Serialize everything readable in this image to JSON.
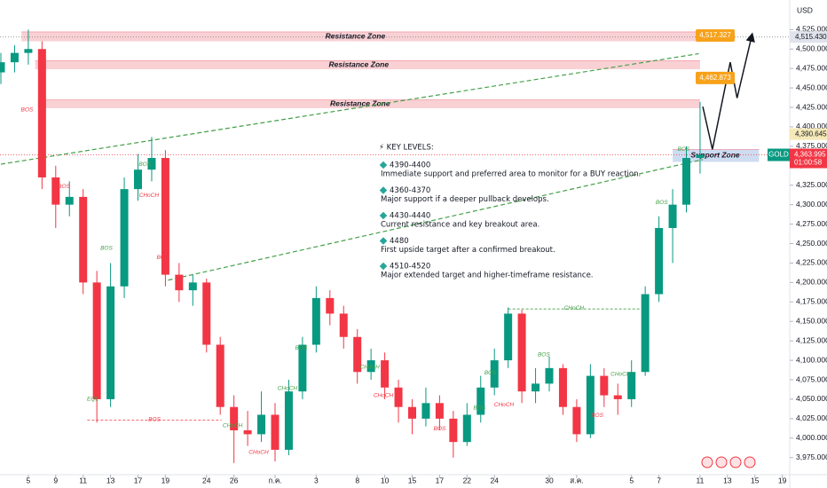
{
  "chart_data": {
    "type": "candlestick",
    "currency": "USD",
    "symbol": "GOLD",
    "countdown": "01:00:58",
    "up_color": "#089981",
    "down_color": "#f23645",
    "ylim": [
      3953,
      4563
    ],
    "yticks": [
      {
        "value": 3975,
        "label": "3,975.000"
      },
      {
        "value": 4000,
        "label": "4,000.000"
      },
      {
        "value": 4025,
        "label": "4,025.000"
      },
      {
        "value": 4050,
        "label": "4,050.000"
      },
      {
        "value": 4075,
        "label": "4,075.000"
      },
      {
        "value": 4100,
        "label": "4,100.000"
      },
      {
        "value": 4125,
        "label": "4,125.000"
      },
      {
        "value": 4150,
        "label": "4,150.000"
      },
      {
        "value": 4175,
        "label": "4,175.000"
      },
      {
        "value": 4200,
        "label": "4,200.000"
      },
      {
        "value": 4225,
        "label": "4,225.000"
      },
      {
        "value": 4250,
        "label": "4,250.000"
      },
      {
        "value": 4275,
        "label": "4,275.000"
      },
      {
        "value": 4300,
        "label": "4,300.000"
      },
      {
        "value": 4325,
        "label": "4,325.000"
      },
      {
        "value": 4350,
        "label": "4,350.000"
      },
      {
        "value": 4375,
        "label": "4,375.000"
      },
      {
        "value": 4400,
        "label": "4,400.000"
      },
      {
        "value": 4425,
        "label": "4,425.000"
      },
      {
        "value": 4450,
        "label": "4,450.000"
      },
      {
        "value": 4475,
        "label": "4,475.000"
      },
      {
        "value": 4500,
        "label": "4,500.000"
      },
      {
        "value": 4525,
        "label": "4,525.000"
      }
    ],
    "categories": [
      null,
      null,
      "5",
      null,
      "9",
      null,
      "11",
      null,
      "13",
      null,
      "17",
      null,
      "19",
      null,
      null,
      "24",
      null,
      "26",
      null,
      null,
      "ก.ค.",
      null,
      null,
      "3",
      null,
      null,
      "8",
      null,
      "10",
      null,
      "15",
      null,
      "17",
      null,
      "22",
      null,
      "24",
      null,
      null,
      null,
      "30",
      null,
      "ส.ค.",
      null,
      null,
      null,
      "5",
      null,
      "7",
      null,
      null,
      "11",
      null,
      "13",
      null,
      "15",
      null,
      "19"
    ],
    "open": [
      4470,
      4483,
      4495,
      4500,
      4335,
      4300,
      4310,
      4200,
      4050,
      4195,
      4320,
      4345,
      4360,
      4210,
      4190,
      4200,
      4120,
      4040,
      4010,
      4005,
      4030,
      3985,
      4060,
      4120,
      4180,
      4160,
      4130,
      4085,
      4100,
      4065,
      4040,
      4025,
      4045,
      4025,
      3995,
      4030,
      4065,
      4100,
      4160,
      4060,
      4070,
      4090,
      4040,
      4005,
      4080,
      4055,
      4050,
      4085,
      4185,
      4270,
      4300,
      4360,
      null,
      null,
      null,
      null,
      null,
      null
    ],
    "high": [
      4495,
      4505,
      4525,
      4510,
      4350,
      4330,
      4320,
      4215,
      4225,
      4335,
      4365,
      4387,
      4370,
      4225,
      4210,
      4205,
      4130,
      4055,
      4035,
      4060,
      4045,
      4075,
      4130,
      4195,
      4190,
      4170,
      4140,
      4115,
      4110,
      4075,
      4050,
      4065,
      4055,
      4035,
      4045,
      4080,
      4115,
      4168,
      4165,
      4090,
      4105,
      4095,
      4050,
      4095,
      4090,
      4070,
      4100,
      4195,
      4285,
      4320,
      4375,
      4432,
      null,
      null,
      null,
      null,
      null,
      null
    ],
    "low": [
      4455,
      4470,
      4480,
      4320,
      4270,
      4285,
      4185,
      4020,
      4040,
      4180,
      4305,
      4330,
      4195,
      4175,
      4170,
      4110,
      4030,
      3968,
      3990,
      3995,
      3970,
      3978,
      4050,
      4110,
      4145,
      4115,
      4070,
      4075,
      4050,
      4020,
      4005,
      4015,
      4010,
      3975,
      3990,
      4020,
      4055,
      4090,
      4045,
      4045,
      4060,
      4030,
      3995,
      4000,
      4040,
      4030,
      4040,
      4080,
      4175,
      4225,
      4290,
      4340,
      null,
      null,
      null,
      null,
      null,
      null
    ],
    "close": [
      4483,
      4495,
      4500,
      4335,
      4300,
      4310,
      4200,
      4050,
      4195,
      4320,
      4345,
      4360,
      4210,
      4190,
      4200,
      4120,
      4040,
      4010,
      4005,
      4030,
      3985,
      4060,
      4120,
      4180,
      4160,
      4130,
      4085,
      4100,
      4065,
      4040,
      4025,
      4045,
      4025,
      3995,
      4030,
      4065,
      4100,
      4160,
      4060,
      4070,
      4090,
      4040,
      4005,
      4080,
      4055,
      4050,
      4085,
      4185,
      4270,
      4300,
      4360,
      4364,
      null,
      null,
      null,
      null,
      null,
      null
    ],
    "zones": [
      {
        "label": "Resistance Zone",
        "lo": 4510,
        "hi": 4522,
        "x": [
          1.5,
          51.5
        ],
        "color": "#f8c9cd"
      },
      {
        "label": "Resistance Zone",
        "lo": 4474,
        "hi": 4485,
        "x": [
          2.5,
          51
        ],
        "color": "#f8c9cd"
      },
      {
        "label": "Resistance Zone",
        "lo": 4424,
        "hi": 4435,
        "x": [
          2.7,
          51
        ],
        "color": "#f8c9cd"
      },
      {
        "label": "Support Zone",
        "lo": 4355,
        "hi": 4371,
        "x": [
          49,
          55.3
        ],
        "color": "#c5d6f0"
      }
    ],
    "trendlines": [
      {
        "x": [
          0,
          50.9
        ],
        "y": [
          4352,
          4494
        ],
        "color": "#43a047"
      },
      {
        "x": [
          12.2,
          51.2
        ],
        "y": [
          4203,
          4358
        ],
        "color": "#43a047"
      }
    ],
    "projection": {
      "x": [
        51.2,
        51.9,
        53.2,
        53.7,
        54.8
      ],
      "y": [
        4426,
        4371,
        4483,
        4437,
        4519
      ],
      "color": "#131722"
    },
    "levels": [
      {
        "label": "BOS",
        "y": 4023,
        "x": [
          6.3,
          16.1
        ],
        "color": "#f23645"
      },
      {
        "label": "CHoCH",
        "y": 4166,
        "x": [
          37,
          46.6
        ],
        "color": "#43a047"
      }
    ],
    "structure": [
      {
        "label": "BOS",
        "x": 1.9,
        "y": 4422,
        "color": "#f23645"
      },
      {
        "label": "BOS",
        "x": 4.6,
        "y": 4323,
        "color": "#f23645"
      },
      {
        "label": "BOS",
        "x": 7.7,
        "y": 4244,
        "color": "#43a047"
      },
      {
        "label": "EQL",
        "x": 6.7,
        "y": 4050,
        "color": "#43a047"
      },
      {
        "label": "BOS",
        "x": 10.5,
        "y": 4352,
        "color": "#43a047"
      },
      {
        "label": "CHoCH",
        "x": 10.8,
        "y": 4312,
        "color": "#f23645"
      },
      {
        "label": "BOS",
        "x": 11.8,
        "y": 4232,
        "color": "#f23645"
      },
      {
        "label": "CHoCH",
        "x": 16.9,
        "y": 4016,
        "color": "#43a047"
      },
      {
        "label": "CHoCH",
        "x": 18.8,
        "y": 3982,
        "color": "#f23645"
      },
      {
        "label": "CHoCH",
        "x": 20.9,
        "y": 4064,
        "color": "#43a047"
      },
      {
        "label": "BOS",
        "x": 21.9,
        "y": 4116,
        "color": "#43a047"
      },
      {
        "label": "CHoCH",
        "x": 26.9,
        "y": 4091,
        "color": "#43a047"
      },
      {
        "label": "CHoCH",
        "x": 27.9,
        "y": 4055,
        "color": "#f23645"
      },
      {
        "label": "BOS",
        "x": 32,
        "y": 4012,
        "color": "#f23645"
      },
      {
        "label": "BOS",
        "x": 34.9,
        "y": 4039,
        "color": "#43a047"
      },
      {
        "label": "BOS",
        "x": 35.7,
        "y": 4084,
        "color": "#43a047"
      },
      {
        "label": "CHoCH",
        "x": 36.7,
        "y": 4043,
        "color": "#f23645"
      },
      {
        "label": "BOS",
        "x": 39.6,
        "y": 4107,
        "color": "#43a047"
      },
      {
        "label": "BOS",
        "x": 43.5,
        "y": 4029,
        "color": "#f23645"
      },
      {
        "label": "CHoCH",
        "x": 45.2,
        "y": 4082,
        "color": "#43a047"
      },
      {
        "label": "BOS",
        "x": 48.2,
        "y": 4303,
        "color": "#43a047"
      },
      {
        "label": "BOS",
        "x": 49.8,
        "y": 4371,
        "color": "#43a047"
      }
    ],
    "price_tags": [
      {
        "value": 4517.327,
        "label": "4,517.327",
        "color": "#f7a21b"
      },
      {
        "value": 4462.873,
        "label": "4,462.873",
        "color": "#f7a21b"
      }
    ],
    "axis_tags": [
      {
        "value": 4515.43,
        "label": "4,515.430",
        "color": "#e0e3eb",
        "text_color": "#131722"
      },
      {
        "value": 4390.645,
        "label": "4,390.645",
        "color": "#f5e9b8",
        "text_color": "#131722"
      }
    ],
    "current_price": {
      "value": 4363.995,
      "label": "4,363.995",
      "color": "#f23645"
    },
    "key_levels": {
      "title": "⚡ KEY LEVELS:",
      "items": [
        {
          "range": "4390-4400",
          "text": "Immediate support and preferred area to monitor for a BUY reaction."
        },
        {
          "range": "4360-4370",
          "text": "Major support if a deeper pullback develops."
        },
        {
          "range": "4430-4440",
          "text": "Current resistance and key breakout area."
        },
        {
          "range": "4480",
          "text": "First upside target after a confirmed breakout."
        },
        {
          "range": "4510-4520",
          "text": "Major extended target and higher-timeframe resistance."
        }
      ]
    }
  }
}
